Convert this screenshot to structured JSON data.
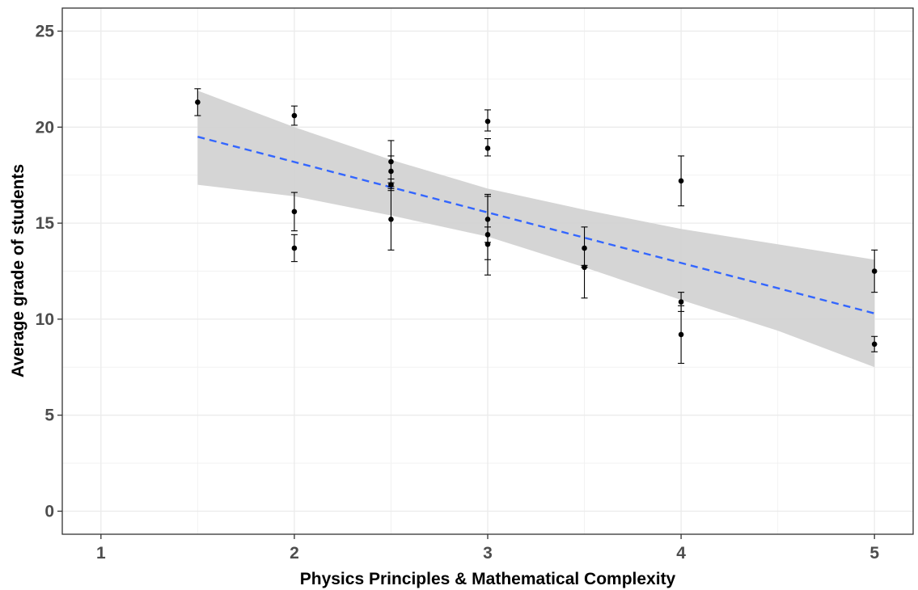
{
  "chart_data": {
    "type": "scatter",
    "title": "",
    "xlabel": "Physics Principles & Mathematical Complexity",
    "ylabel": "Average grade of students",
    "xlim": [
      0.8,
      5.2
    ],
    "ylim": [
      -1.2,
      26.2
    ],
    "x_ticks": [
      "1",
      "2",
      "3",
      "4",
      "5"
    ],
    "y_ticks": [
      "0",
      "5",
      "10",
      "15",
      "20",
      "25"
    ],
    "grid": true,
    "legend": "none",
    "points": [
      {
        "x": 1.5,
        "y": 21.3,
        "ymin": 20.6,
        "ymax": 22.0
      },
      {
        "x": 2.0,
        "y": 20.6,
        "ymin": 20.1,
        "ymax": 21.1
      },
      {
        "x": 2.0,
        "y": 15.6,
        "ymin": 14.6,
        "ymax": 16.6
      },
      {
        "x": 2.0,
        "y": 13.7,
        "ymin": 13.0,
        "ymax": 14.4
      },
      {
        "x": 2.5,
        "y": 18.2,
        "ymin": 17.1,
        "ymax": 19.3
      },
      {
        "x": 2.5,
        "y": 17.7,
        "ymin": 16.9,
        "ymax": 18.5
      },
      {
        "x": 2.5,
        "y": 17.0,
        "ymin": 16.7,
        "ymax": 17.3
      },
      {
        "x": 2.5,
        "y": 15.2,
        "ymin": 13.6,
        "ymax": 16.8
      },
      {
        "x": 3.0,
        "y": 20.3,
        "ymin": 19.8,
        "ymax": 20.9
      },
      {
        "x": 3.0,
        "y": 18.9,
        "ymin": 18.5,
        "ymax": 19.4
      },
      {
        "x": 3.0,
        "y": 15.2,
        "ymin": 14.0,
        "ymax": 16.5
      },
      {
        "x": 3.0,
        "y": 14.4,
        "ymin": 12.3,
        "ymax": 16.4
      },
      {
        "x": 3.0,
        "y": 13.9,
        "ymin": 13.1,
        "ymax": 14.8
      },
      {
        "x": 3.5,
        "y": 13.7,
        "ymin": 12.7,
        "ymax": 14.8
      },
      {
        "x": 3.5,
        "y": 12.7,
        "ymin": 11.1,
        "ymax": 12.8
      },
      {
        "x": 4.0,
        "y": 17.2,
        "ymin": 15.9,
        "ymax": 18.5
      },
      {
        "x": 4.0,
        "y": 10.9,
        "ymin": 10.4,
        "ymax": 11.4
      },
      {
        "x": 4.0,
        "y": 9.2,
        "ymin": 7.7,
        "ymax": 10.7
      },
      {
        "x": 5.0,
        "y": 12.5,
        "ymin": 11.4,
        "ymax": 13.6
      },
      {
        "x": 5.0,
        "y": 8.7,
        "ymin": 8.3,
        "ymax": 9.1
      }
    ],
    "trend_line": {
      "x": [
        1.5,
        5.0
      ],
      "y": [
        19.5,
        10.3
      ],
      "color": "#3366ff",
      "style": "dashed"
    },
    "confidence_band": {
      "x": [
        1.5,
        2.0,
        2.5,
        3.0,
        3.5,
        4.0,
        4.5,
        5.0
      ],
      "upper": [
        21.9,
        20.0,
        18.3,
        16.8,
        15.7,
        14.7,
        13.9,
        13.1
      ],
      "lower": [
        17.0,
        16.4,
        15.4,
        14.3,
        12.7,
        11.0,
        9.4,
        7.5
      ],
      "color": "#d3d3d3"
    },
    "point_color": "#000000"
  }
}
